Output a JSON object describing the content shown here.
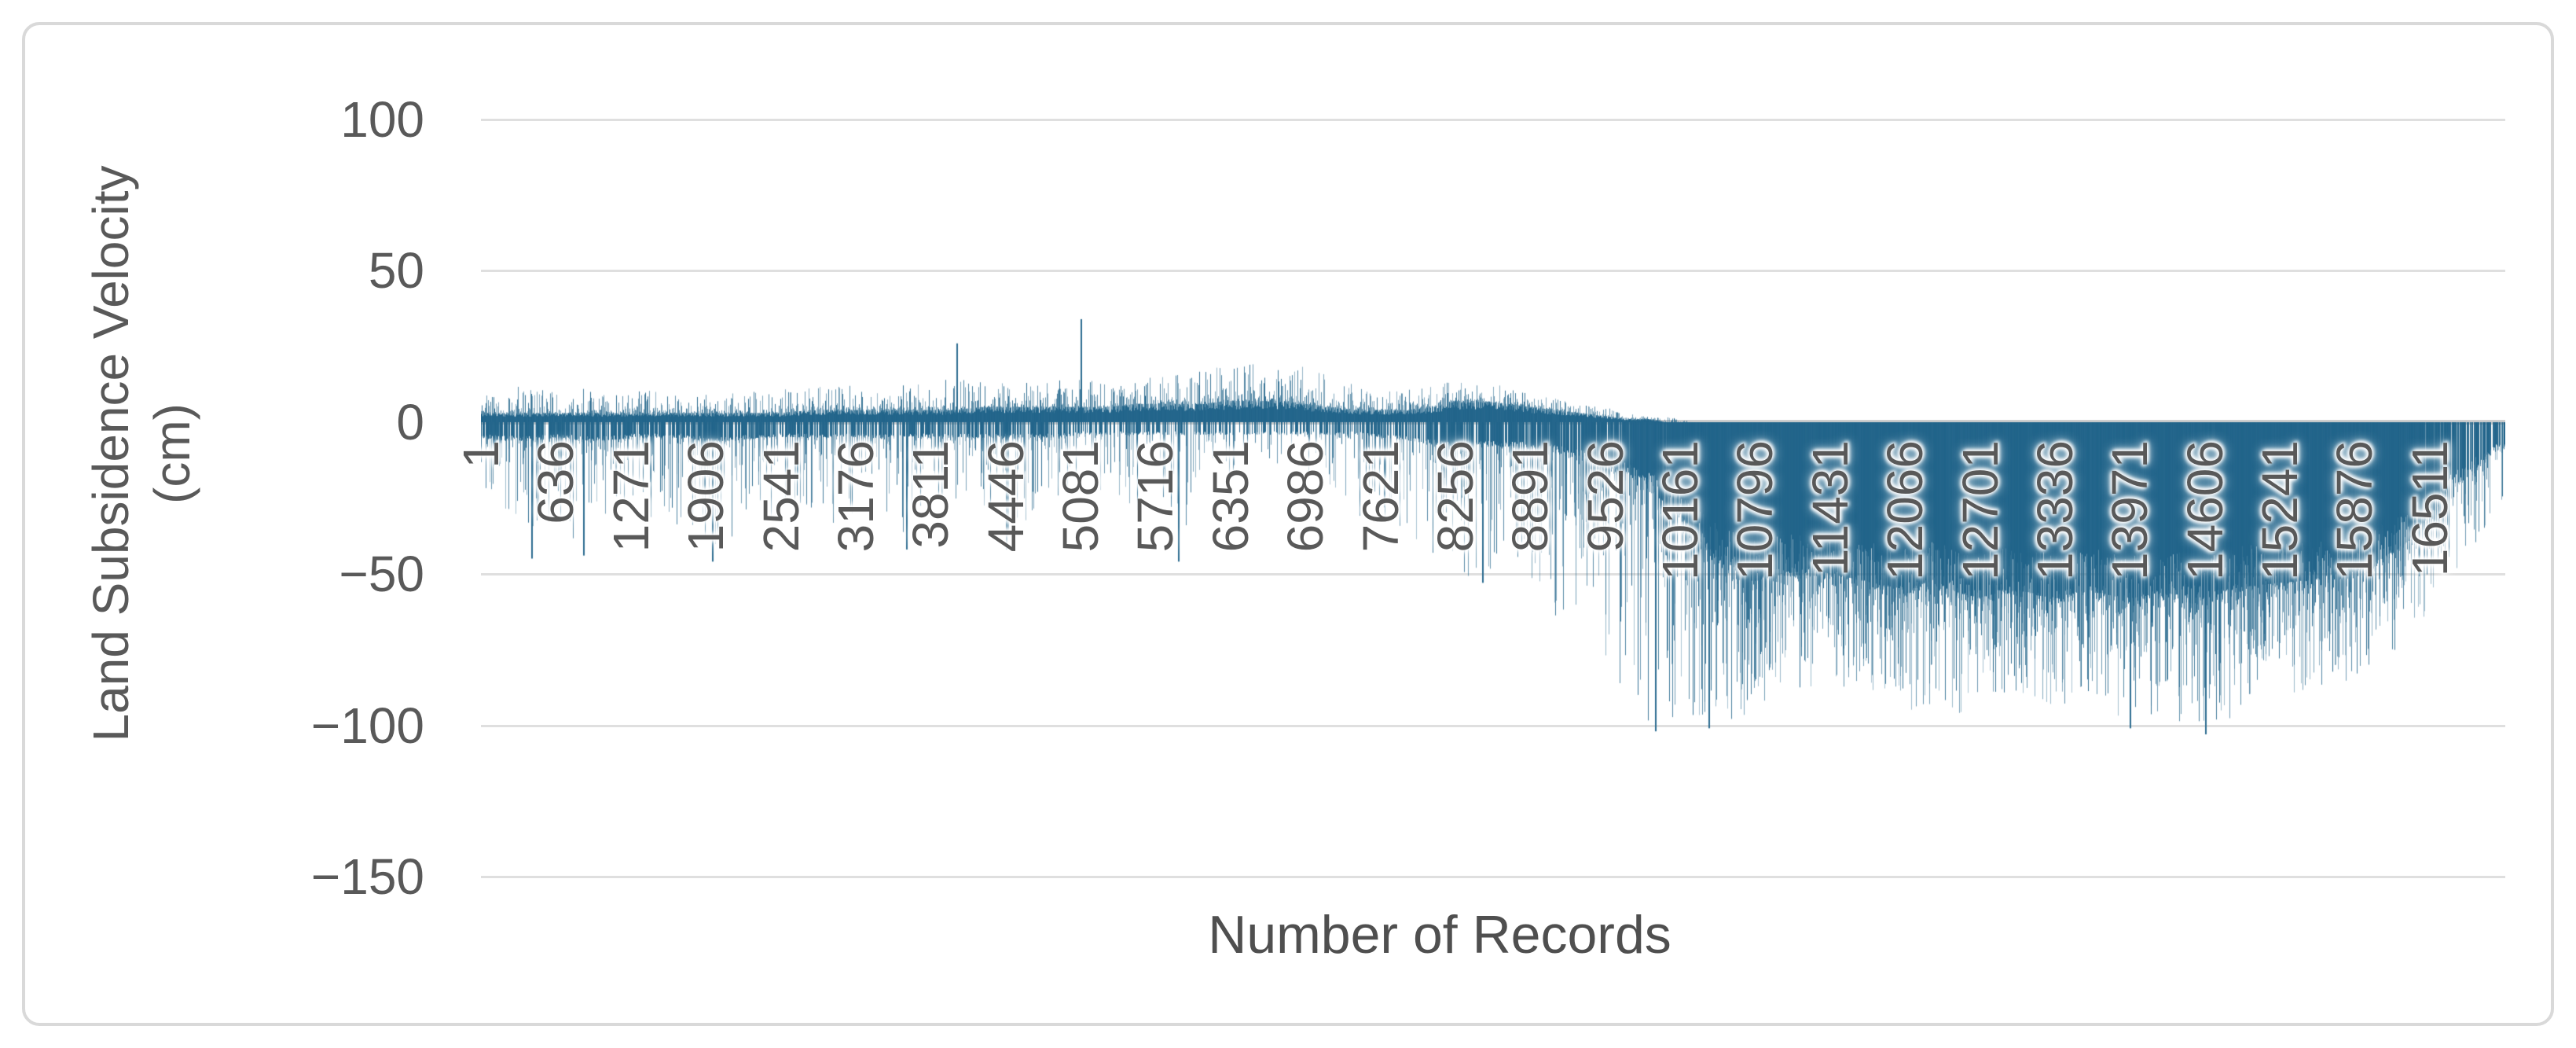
{
  "chart_data": {
    "type": "bar",
    "title": "",
    "xlabel": "Number of Records",
    "ylabel_line1": "Land Subsidence Velocity",
    "ylabel_line2": "(cm)",
    "ylim": [
      -150,
      100
    ],
    "grid": "horizontal",
    "legend": "none",
    "bar_color": "#21648A",
    "gridline_color": "#dfdfdf",
    "axis_line_color": "#cfcfcf",
    "tick_label_color": "#595959",
    "axis_title_color": "#4f4f4f",
    "n_records": 17145,
    "x_tick_step": 635,
    "y_ticks": [
      {
        "v": 100,
        "label": "100"
      },
      {
        "v": 50,
        "label": "50"
      },
      {
        "v": 0,
        "label": "0"
      },
      {
        "v": -50,
        "label": "−50"
      },
      {
        "v": -100,
        "label": "−100"
      },
      {
        "v": -150,
        "label": "−150"
      }
    ],
    "x_ticks": [
      {
        "record": 1,
        "label": "1"
      },
      {
        "record": 636,
        "label": "636"
      },
      {
        "record": 1271,
        "label": "1271"
      },
      {
        "record": 1906,
        "label": "1906"
      },
      {
        "record": 2541,
        "label": "2541"
      },
      {
        "record": 3176,
        "label": "3176"
      },
      {
        "record": 3811,
        "label": "3811"
      },
      {
        "record": 4446,
        "label": "4446"
      },
      {
        "record": 5081,
        "label": "5081"
      },
      {
        "record": 5716,
        "label": "5716"
      },
      {
        "record": 6351,
        "label": "6351"
      },
      {
        "record": 6986,
        "label": "6986"
      },
      {
        "record": 7621,
        "label": "7621"
      },
      {
        "record": 8256,
        "label": "8256"
      },
      {
        "record": 8891,
        "label": "8891"
      },
      {
        "record": 9526,
        "label": "9526"
      },
      {
        "record": 10161,
        "label": "10161"
      },
      {
        "record": 10796,
        "label": "10796"
      },
      {
        "record": 11431,
        "label": "11431"
      },
      {
        "record": 12066,
        "label": "12066"
      },
      {
        "record": 12701,
        "label": "12701"
      },
      {
        "record": 13336,
        "label": "13336"
      },
      {
        "record": 13971,
        "label": "13971"
      },
      {
        "record": 14606,
        "label": "14606"
      },
      {
        "record": 15241,
        "label": "15241"
      },
      {
        "record": 15876,
        "label": "15876"
      },
      {
        "record": 16511,
        "label": "16511"
      }
    ],
    "envelope_format": [
      "record",
      "max_pos",
      "dense_pos",
      "max_neg",
      "dense_neg",
      "neg_density"
    ],
    "envelope": [
      [
        1,
        10,
        3,
        -22,
        -5,
        0.55
      ],
      [
        200,
        13,
        3,
        -30,
        -6,
        0.5
      ],
      [
        430,
        11,
        3,
        -46,
        -6,
        0.5
      ],
      [
        636,
        10,
        3,
        -30,
        -5,
        0.5
      ],
      [
        865,
        11,
        3,
        -44,
        -6,
        0.5
      ],
      [
        1100,
        10,
        3,
        -34,
        -6,
        0.5
      ],
      [
        1271,
        10,
        3,
        -28,
        -5,
        0.5
      ],
      [
        1500,
        12,
        3,
        -33,
        -5,
        0.5
      ],
      [
        1750,
        10,
        3,
        -36,
        -5,
        0.5
      ],
      [
        1960,
        11,
        3,
        -46,
        -7,
        0.55
      ],
      [
        2150,
        10,
        3,
        -42,
        -6,
        0.5
      ],
      [
        2350,
        10,
        3,
        -28,
        -5,
        0.45
      ],
      [
        2541,
        11,
        3,
        -40,
        -5,
        0.45
      ],
      [
        2800,
        12,
        4,
        -33,
        -5,
        0.45
      ],
      [
        3000,
        12,
        4,
        -36,
        -5,
        0.45
      ],
      [
        3176,
        13,
        4,
        -30,
        -5,
        0.45
      ],
      [
        3400,
        12,
        4,
        -27,
        -5,
        0.4
      ],
      [
        3600,
        13,
        4,
        -42,
        -5,
        0.4
      ],
      [
        3811,
        13,
        4,
        -30,
        -5,
        0.4
      ],
      [
        4030,
        15,
        4,
        -26,
        -5,
        0.4
      ],
      [
        4250,
        13,
        5,
        -30,
        -5,
        0.4
      ],
      [
        4446,
        13,
        5,
        -42,
        -5,
        0.4
      ],
      [
        4650,
        13,
        5,
        -34,
        -5,
        0.35
      ],
      [
        4900,
        14,
        5,
        -26,
        -5,
        0.35
      ],
      [
        5081,
        15,
        5,
        -24,
        -4,
        0.3
      ],
      [
        5300,
        14,
        5,
        -22,
        -4,
        0.3
      ],
      [
        5550,
        15,
        6,
        -30,
        -4,
        0.3
      ],
      [
        5716,
        15,
        6,
        -22,
        -4,
        0.3
      ],
      [
        5907,
        16,
        6,
        -46,
        -4,
        0.3
      ],
      [
        6100,
        17,
        6,
        -18,
        -4,
        0.22
      ],
      [
        6351,
        19,
        7,
        -20,
        -4,
        0.22
      ],
      [
        6600,
        20,
        7,
        -16,
        -4,
        0.2
      ],
      [
        6800,
        20,
        7,
        -20,
        -4,
        0.2
      ],
      [
        6986,
        18,
        6,
        -18,
        -4,
        0.22
      ],
      [
        7200,
        15,
        5,
        -22,
        -4,
        0.28
      ],
      [
        7400,
        13,
        4,
        -30,
        -4,
        0.35
      ],
      [
        7621,
        12,
        4,
        -36,
        -5,
        0.42
      ],
      [
        7850,
        11,
        4,
        -42,
        -6,
        0.48
      ],
      [
        8050,
        12,
        5,
        -46,
        -7,
        0.5
      ],
      [
        8256,
        14,
        7,
        -52,
        -8,
        0.5
      ],
      [
        8480,
        13,
        7,
        -50,
        -8,
        0.5
      ],
      [
        8700,
        12,
        6,
        -45,
        -8,
        0.5
      ],
      [
        8891,
        10,
        5,
        -58,
        -9,
        0.55
      ],
      [
        9100,
        8,
        4,
        -64,
        -10,
        0.6
      ],
      [
        9300,
        6,
        3,
        -70,
        -12,
        0.62
      ],
      [
        9526,
        5,
        2,
        -80,
        -15,
        0.65
      ],
      [
        9700,
        3,
        1,
        -92,
        -18,
        0.7
      ],
      [
        9900,
        2,
        1,
        -100,
        -22,
        0.75
      ],
      [
        10050,
        2,
        0,
        -103,
        -26,
        0.8
      ],
      [
        10161,
        1,
        0,
        -98,
        -30,
        0.85
      ],
      [
        10300,
        0,
        0,
        -100,
        -38,
        0.92
      ],
      [
        10500,
        0,
        0,
        -101,
        -45,
        1
      ],
      [
        10796,
        0,
        0,
        -96,
        -52,
        1
      ],
      [
        11000,
        0,
        0,
        -88,
        -50,
        1
      ],
      [
        11200,
        0,
        0,
        -90,
        -48,
        1
      ],
      [
        11431,
        0,
        0,
        -86,
        -50,
        1
      ],
      [
        11700,
        0,
        0,
        -92,
        -52,
        1
      ],
      [
        11900,
        0,
        0,
        -88,
        -54,
        1
      ],
      [
        12066,
        0,
        0,
        -96,
        -55,
        1
      ],
      [
        12300,
        0,
        0,
        -93,
        -52,
        1
      ],
      [
        12500,
        0,
        0,
        -97,
        -56,
        1
      ],
      [
        12701,
        0,
        0,
        -92,
        -58,
        1
      ],
      [
        12900,
        0,
        0,
        -90,
        -55,
        1
      ],
      [
        13100,
        0,
        0,
        -94,
        -56,
        1
      ],
      [
        13336,
        0,
        0,
        -96,
        -58,
        1
      ],
      [
        13600,
        0,
        0,
        -91,
        -55,
        1
      ],
      [
        13800,
        0,
        0,
        -95,
        -57,
        1
      ],
      [
        13971,
        0,
        0,
        -101,
        -58,
        1
      ],
      [
        14200,
        0,
        0,
        -97,
        -56,
        1
      ],
      [
        14400,
        0,
        0,
        -99,
        -57,
        1
      ],
      [
        14606,
        0,
        0,
        -103,
        -58,
        1
      ],
      [
        14800,
        0,
        0,
        -98,
        -55,
        1
      ],
      [
        15000,
        0,
        0,
        -94,
        -54,
        1
      ],
      [
        15241,
        0,
        0,
        -91,
        -53,
        1
      ],
      [
        15500,
        0,
        0,
        -89,
        -52,
        1
      ],
      [
        15700,
        0,
        0,
        -87,
        -50,
        1
      ],
      [
        15876,
        0,
        0,
        -84,
        -48,
        1
      ],
      [
        16100,
        0,
        0,
        -80,
        -45,
        0.98
      ],
      [
        16300,
        0,
        0,
        -72,
        -40,
        0.9
      ],
      [
        16511,
        0,
        0,
        -62,
        -30,
        0.75
      ],
      [
        16700,
        0,
        0,
        -52,
        -22,
        0.6
      ],
      [
        16900,
        0,
        0,
        -42,
        -15,
        0.5
      ],
      [
        17050,
        0,
        0,
        -32,
        -10,
        0.45
      ],
      [
        17145,
        0,
        0,
        -24,
        -8,
        0.4
      ]
    ],
    "notable_spikes_format": [
      "record",
      "value"
    ],
    "notable_spikes": [
      [
        430,
        -45
      ],
      [
        865,
        -44
      ],
      [
        1960,
        -46
      ],
      [
        3600,
        -42
      ],
      [
        4030,
        26
      ],
      [
        4446,
        -42
      ],
      [
        5080,
        34
      ],
      [
        5907,
        -46
      ],
      [
        8480,
        -53
      ],
      [
        9950,
        -102
      ],
      [
        10400,
        -101
      ],
      [
        13971,
        -101
      ],
      [
        14606,
        -103
      ]
    ]
  }
}
